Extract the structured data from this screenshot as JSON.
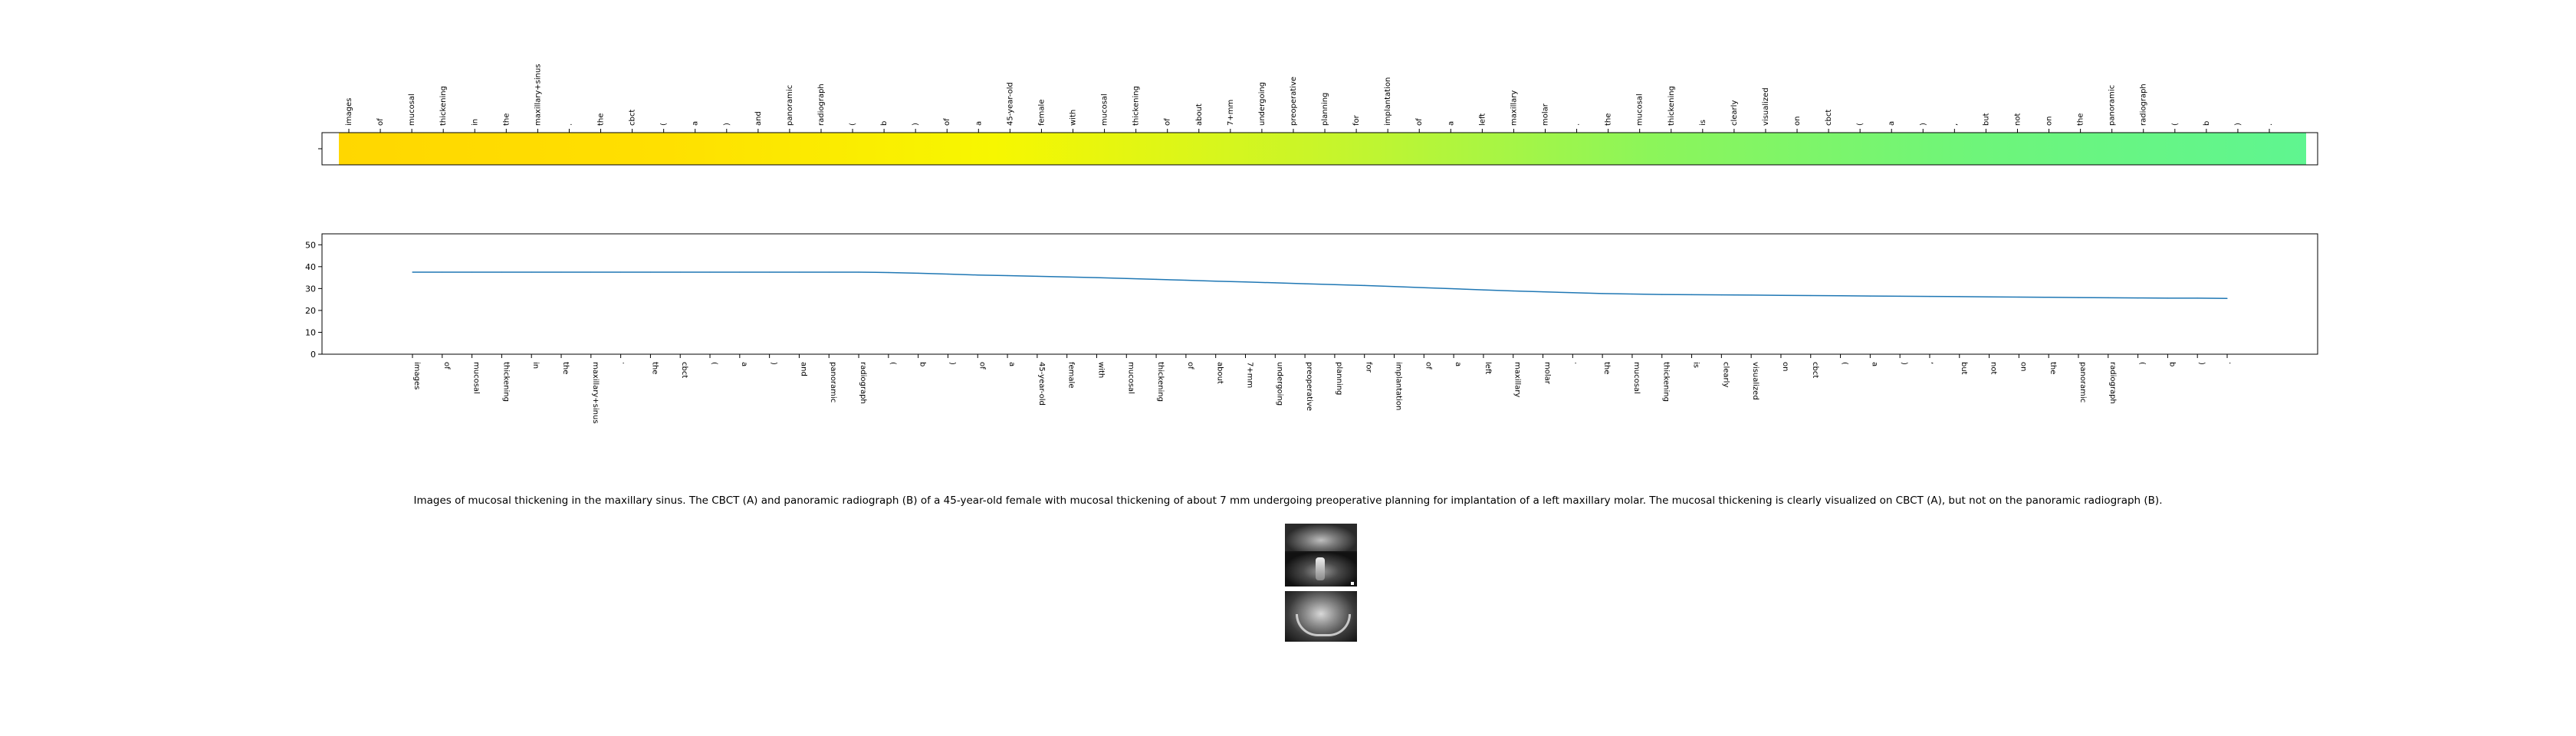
{
  "tokens": [
    "images",
    "of",
    "mucosal",
    "thickening",
    "in",
    "the",
    "maxillary+sinus",
    ".",
    "the",
    "cbct",
    "(",
    "a",
    ")",
    "and",
    "panoramic",
    "radiograph",
    "(",
    "b",
    ")",
    "of",
    "a",
    "45-year-old",
    "female",
    "with",
    "mucosal",
    "thickening",
    "of",
    "about",
    "7+mm",
    "undergoing",
    "preoperative",
    "planning",
    "for",
    "implantation",
    "of",
    "a",
    "left",
    "maxillary",
    "molar",
    ".",
    "the",
    "mucosal",
    "thickening",
    "is",
    "clearly",
    "visualized",
    "on",
    "cbct",
    "(",
    "a",
    ")",
    ",",
    "but",
    "not",
    "on",
    "the",
    "panoramic",
    "radiograph",
    "(",
    "b",
    ")",
    "."
  ],
  "colors": {
    "gradient_stops": [
      "#ffd700",
      "#ffe000",
      "#f7f700",
      "#c8f52a",
      "#8cf55a",
      "#6ef57a",
      "#5ff590"
    ],
    "line": "#1f77b4",
    "axis": "#000000"
  },
  "chart_data": [
    {
      "type": "heatmap",
      "x_tick_labels": "tokens",
      "y_tick_labels": [
        ""
      ],
      "title": "",
      "colormap": "yellow-to-green"
    },
    {
      "type": "line",
      "x_tick_labels": "tokens",
      "y": [
        37.5,
        37.5,
        37.5,
        37.5,
        37.5,
        37.5,
        37.5,
        37.5,
        37.5,
        37.5,
        37.5,
        37.5,
        37.5,
        37.5,
        37.5,
        37.5,
        37.3,
        37.0,
        36.6,
        36.2,
        35.9,
        35.6,
        35.3,
        35.0,
        34.6,
        34.2,
        33.8,
        33.4,
        33.0,
        32.6,
        32.2,
        31.8,
        31.4,
        30.9,
        30.4,
        29.9,
        29.4,
        28.9,
        28.5,
        28.1,
        27.7,
        27.5,
        27.3,
        27.2,
        27.1,
        27.0,
        26.9,
        26.8,
        26.7,
        26.6,
        26.5,
        26.4,
        26.3,
        26.2,
        26.1,
        26.0,
        25.9,
        25.8,
        25.7,
        25.6,
        25.6,
        25.5
      ],
      "yticks": [
        0,
        10,
        20,
        30,
        40,
        50
      ],
      "ylim": [
        0,
        55
      ],
      "xlabel": "",
      "ylabel": "",
      "title": "",
      "grid": false
    }
  ],
  "caption": "Images of mucosal thickening in the maxillary sinus. The CBCT (A) and panoramic radiograph (B) of a 45-year-old female with mucosal thickening of about 7 mm undergoing preoperative planning for implantation of a left maxillary molar. The mucosal thickening is clearly visualized on CBCT (A), but not on the panoramic radiograph (B)."
}
